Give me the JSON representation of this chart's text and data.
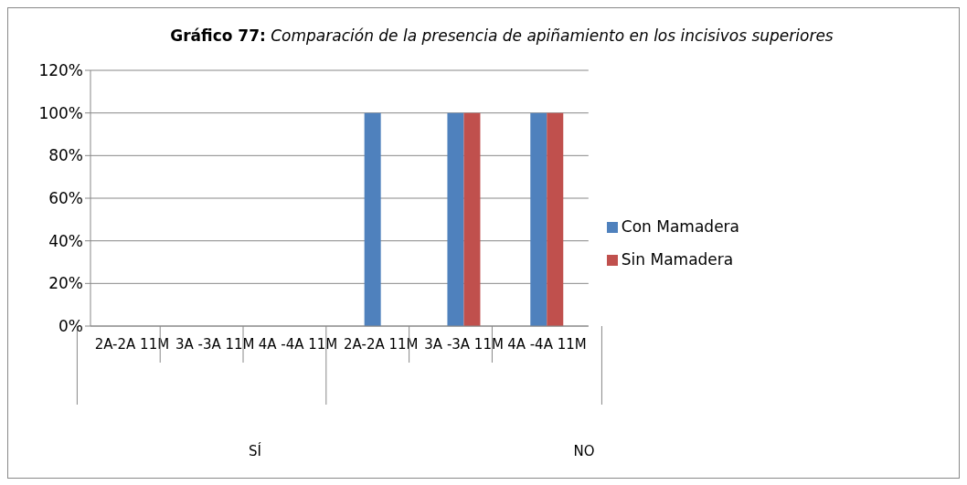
{
  "chart_data": {
    "type": "bar",
    "title": "Gráfico 77: Comparación de la presencia de apiñamiento en los incisivos superiores",
    "categories": [
      "2A-2A 11M",
      "3A -3A 11M",
      "4A -4A 11M",
      "2A-2A 11M",
      "3A -3A 11M",
      "4A -4A 11M"
    ],
    "series": [
      {
        "name": "Con Mamadera",
        "color": "#4f81bd",
        "values": [
          0,
          0,
          0,
          100,
          100,
          100
        ]
      },
      {
        "name": "Sin Mamadera",
        "color": "#c0504d",
        "values": [
          0,
          0,
          0,
          0,
          100,
          100
        ]
      }
    ],
    "annotations": [
      "SÍ",
      "NO"
    ],
    "ylim": [
      0,
      120
    ],
    "yticks": [
      {
        "value": 0,
        "label": "0%"
      },
      {
        "value": 20,
        "label": "20%"
      },
      {
        "value": 40,
        "label": "40%"
      },
      {
        "value": 60,
        "label": "60%"
      },
      {
        "value": 80,
        "label": "80%"
      },
      {
        "value": 100,
        "label": "100%"
      },
      {
        "value": 120,
        "label": "120%"
      }
    ],
    "grid": "y",
    "legend": "right"
  }
}
